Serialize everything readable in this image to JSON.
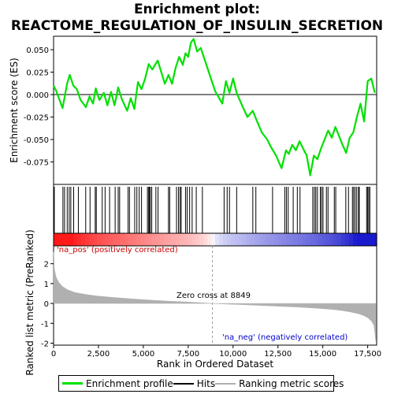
{
  "title_line1": "Enrichment plot:",
  "title_line2": "REACTOME_REGULATION_OF_INSULIN_SECRETION",
  "legend": {
    "enrichment_label": "Enrichment profile",
    "hits_label": "Hits",
    "ranking_label": "Ranking metric scores"
  },
  "annotations": {
    "pos_label": "'na_pos' (positively correlated)",
    "neg_label": "'na_neg' (negatively correlated)",
    "zero_cross_label": "Zero cross at 8849"
  },
  "colors": {
    "enrichment_line": "#00e000",
    "hits": "#000000",
    "ranking_fill": "#b0b0b0",
    "pos_text": "#cc0000",
    "neg_text": "#0000cc",
    "zero_line": "#999999"
  },
  "chart_data": [
    {
      "type": "line",
      "name": "enrichment-score",
      "ylabel": "Enrichment score (ES)",
      "xlim": [
        0,
        18000
      ],
      "ylim": [
        -0.1,
        0.065
      ],
      "yticks": [
        0.05,
        0.025,
        0.0,
        -0.025,
        -0.05,
        -0.075
      ],
      "ytick_labels": [
        "0.050",
        "0.025",
        "0.000",
        "-0.025",
        "-0.050",
        "-0.075"
      ],
      "grid": false,
      "series": [
        {
          "name": "Enrichment profile",
          "x": [
            0,
            150,
            500,
            750,
            900,
            1100,
            1300,
            1500,
            1800,
            2000,
            2200,
            2350,
            2550,
            2800,
            3000,
            3200,
            3400,
            3600,
            3800,
            4100,
            4300,
            4500,
            4700,
            4900,
            5100,
            5300,
            5500,
            5800,
            6000,
            6200,
            6400,
            6600,
            6800,
            7000,
            7200,
            7350,
            7500,
            7650,
            7800,
            8000,
            8200,
            8400,
            9000,
            9400,
            9600,
            9800,
            10000,
            10200,
            10500,
            10800,
            11100,
            11300,
            11600,
            11900,
            12100,
            12400,
            12700,
            12950,
            13100,
            13300,
            13500,
            13700,
            13900,
            14100,
            14300,
            14500,
            14700,
            14900,
            15100,
            15300,
            15500,
            15700,
            15900,
            16100,
            16300,
            16500,
            16700,
            16900,
            17100,
            17300,
            17500,
            17700,
            17900
          ],
          "y": [
            0.01,
            0.004,
            -0.015,
            0.012,
            0.022,
            0.01,
            0.006,
            -0.006,
            -0.014,
            -0.002,
            -0.01,
            0.007,
            -0.006,
            0.002,
            -0.012,
            0.003,
            -0.012,
            0.008,
            -0.005,
            -0.018,
            -0.004,
            -0.016,
            0.014,
            0.006,
            0.018,
            0.034,
            0.028,
            0.038,
            0.025,
            0.012,
            0.022,
            0.012,
            0.03,
            0.042,
            0.033,
            0.046,
            0.042,
            0.058,
            0.062,
            0.048,
            0.052,
            0.04,
            0.004,
            -0.01,
            0.015,
            0.002,
            0.018,
            0.002,
            -0.012,
            -0.025,
            -0.018,
            -0.028,
            -0.042,
            -0.05,
            -0.058,
            -0.068,
            -0.082,
            -0.062,
            -0.066,
            -0.056,
            -0.062,
            -0.052,
            -0.06,
            -0.068,
            -0.09,
            -0.068,
            -0.072,
            -0.06,
            -0.05,
            -0.04,
            -0.048,
            -0.036,
            -0.046,
            -0.056,
            -0.065,
            -0.048,
            -0.042,
            -0.025,
            -0.01,
            -0.03,
            0.015,
            0.018,
            0.002
          ]
        }
      ]
    },
    {
      "type": "hits",
      "name": "gene-set-hits",
      "xlim": [
        0,
        18000
      ],
      "positions": [
        40,
        520,
        610,
        760,
        870,
        960,
        1120,
        1380,
        1790,
        2030,
        2320,
        2380,
        2710,
        2870,
        3120,
        3430,
        3600,
        3680,
        4150,
        4230,
        4520,
        4640,
        4770,
        4900,
        5230,
        5300,
        5340,
        5390,
        5470,
        5700,
        5820,
        6400,
        6470,
        6850,
        6960,
        7050,
        7110,
        7350,
        7440,
        7580,
        7720,
        7950,
        8290,
        9500,
        9670,
        9800,
        10200,
        11100,
        11270,
        12200,
        12880,
        12970,
        13070,
        13350,
        13580,
        13730,
        14440,
        14530,
        14610,
        14700,
        14860,
        14930,
        15010,
        15200,
        15290,
        15640,
        15720,
        16280,
        16430,
        16650,
        16720,
        16800,
        16890,
        16990,
        17030,
        17440,
        17500,
        17560,
        17620
      ]
    },
    {
      "type": "area",
      "name": "ranked-list-metric",
      "xlabel": "Rank in Ordered Dataset",
      "ylabel": "Ranked list metric (PreRanked)",
      "xlim": [
        0,
        18000
      ],
      "ylim": [
        -2.1,
        2.9
      ],
      "yticks": [
        2,
        1,
        0,
        -1,
        -2
      ],
      "xticks": [
        0,
        2500,
        5000,
        7500,
        10000,
        12500,
        15000,
        17500
      ],
      "xtick_labels": [
        "0",
        "2,500",
        "5,000",
        "7,500",
        "10,000",
        "12,500",
        "15,000",
        "17,500"
      ],
      "zero_cross": 8849,
      "x": [
        0,
        50,
        150,
        300,
        500,
        800,
        1200,
        1800,
        2500,
        3500,
        4500,
        5500,
        6500,
        7500,
        8500,
        8849,
        9500,
        10500,
        11500,
        12500,
        13500,
        14500,
        15500,
        16000,
        16500,
        17000,
        17300,
        17500,
        17700,
        17850,
        17950
      ],
      "values": [
        2.6,
        1.7,
        1.3,
        1.05,
        0.85,
        0.68,
        0.55,
        0.45,
        0.37,
        0.29,
        0.22,
        0.16,
        0.11,
        0.07,
        0.02,
        0.0,
        -0.03,
        -0.06,
        -0.1,
        -0.14,
        -0.18,
        -0.23,
        -0.3,
        -0.35,
        -0.42,
        -0.52,
        -0.62,
        -0.72,
        -0.88,
        -1.1,
        -1.9
      ]
    }
  ]
}
